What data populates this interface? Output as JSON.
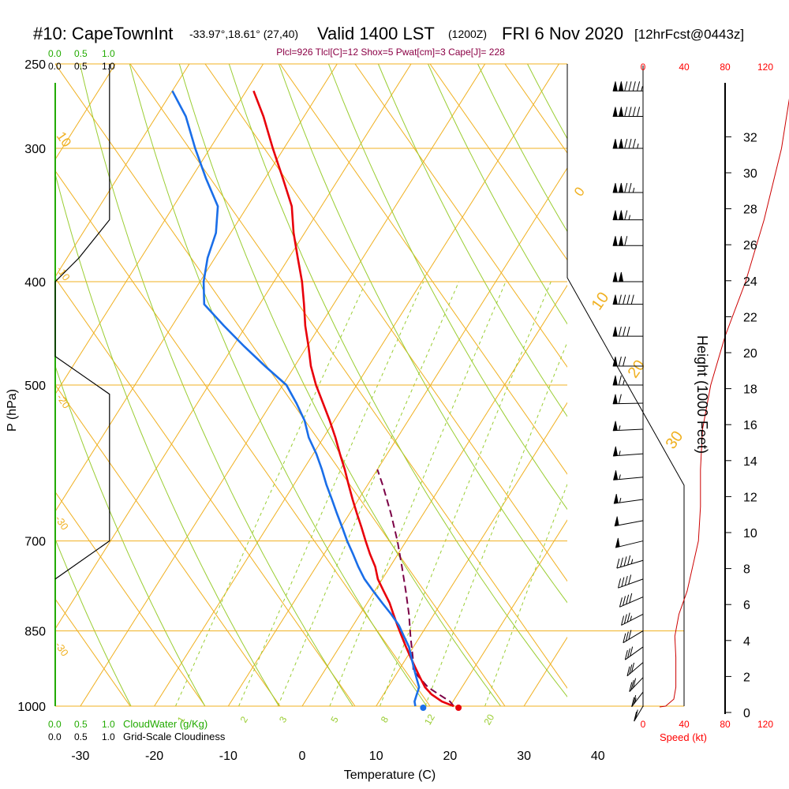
{
  "header": {
    "station": "#10: CapeTownInt",
    "coords": "-33.97°,18.61° (27,40)",
    "valid": "Valid 1400 LST",
    "utc": "(1200Z)",
    "date": "FRI 6 Nov 2020",
    "forecast": "[12hrFcst@0443z]",
    "params": "Plcl=926 Tlcl[C]=12 Shox=5 Pwat[cm]=3 Cape[J]= 228"
  },
  "legends": {
    "cloudwater_label": "CloudWater (g/Kg)",
    "cloudiness_label": "Grid-Scale Cloudiness",
    "cloudwater_ticks": [
      "0.0",
      "0.5",
      "1.0"
    ],
    "cloudiness_ticks": [
      "0.0",
      "0.5",
      "1.0"
    ],
    "speed_label": "Speed (kt)",
    "speed_ticks": [
      "0",
      "40",
      "80",
      "120"
    ]
  },
  "colors": {
    "isotherm": "#f0b020",
    "dry_adiabat": "#9acd32",
    "temperature": "#e8000b",
    "dewpoint": "#1a6ee8",
    "parcel": "#7b0046",
    "cloud_green": "#22aa00",
    "speed_red": "#ff0000"
  },
  "chart_data": {
    "type": "line",
    "xlabel": "Temperature (C)",
    "ylabel": "P (hPa)",
    "y2label": "Height (1000 Feet)",
    "xlim": [
      -35,
      45
    ],
    "ylim": [
      1000,
      250
    ],
    "y_scale": "log",
    "x_ticks": [
      -30,
      -20,
      -10,
      0,
      10,
      20,
      30,
      40
    ],
    "pressure_ticks": [
      250,
      300,
      400,
      500,
      700,
      850,
      1000
    ],
    "height_ticks": [
      0,
      2,
      4,
      6,
      8,
      10,
      12,
      14,
      16,
      18,
      20,
      22,
      24,
      26,
      28,
      30,
      32
    ],
    "isotherm_labels": [
      "10",
      "0",
      "-10",
      "-20",
      "-30",
      "0",
      "10",
      "20",
      "30"
    ],
    "mixing_ratio_labels": [
      "1",
      "2",
      "3",
      "5",
      "8",
      "12",
      "20"
    ],
    "series": [
      {
        "key": "temperature",
        "p": [
          1000,
          990,
          975,
          960,
          940,
          920,
          900,
          880,
          860,
          840,
          820,
          800,
          780,
          760,
          740,
          720,
          700,
          680,
          660,
          640,
          620,
          600,
          580,
          560,
          540,
          520,
          500,
          480,
          460,
          440,
          420,
          400,
          380,
          360,
          340,
          320,
          300,
          280,
          265
        ],
        "t": [
          20.5,
          18.5,
          16.5,
          15,
          13.5,
          12,
          10.5,
          9,
          7.5,
          6,
          4.5,
          3,
          1.2,
          -0.6,
          -2,
          -3.8,
          -5.5,
          -7.2,
          -9,
          -10.8,
          -12.6,
          -14.4,
          -16.4,
          -18.4,
          -20.6,
          -23,
          -25.5,
          -27.8,
          -29.8,
          -32,
          -34,
          -36.2,
          -38.8,
          -41.5,
          -44,
          -47.6,
          -51.5,
          -55.5,
          -59
        ]
      },
      {
        "key": "dewpoint",
        "p": [
          1000,
          990,
          975,
          960,
          940,
          920,
          900,
          880,
          860,
          840,
          820,
          800,
          780,
          760,
          740,
          720,
          700,
          680,
          660,
          640,
          620,
          600,
          580,
          560,
          540,
          520,
          500,
          480,
          460,
          440,
          420,
          400,
          380,
          360,
          340,
          320,
          300,
          280,
          265
        ],
        "t": [
          15.3,
          14.8,
          14.5,
          14.2,
          13,
          11.8,
          10.6,
          9.4,
          7.8,
          6.2,
          4.2,
          2,
          -0.2,
          -2.4,
          -4.3,
          -6.1,
          -8,
          -9.8,
          -11.7,
          -13.6,
          -15.6,
          -17.5,
          -19.6,
          -22,
          -24,
          -26.6,
          -29.5,
          -34,
          -38.5,
          -43,
          -47.5,
          -49.5,
          -51,
          -52,
          -54,
          -58,
          -62,
          -66,
          -70
        ]
      },
      {
        "key": "parcel",
        "p": [
          1000,
          990,
          975,
          960,
          940,
          926,
          900,
          860,
          820,
          780,
          740,
          700,
          660,
          620,
          600
        ],
        "t": [
          20.5,
          19.6,
          17.5,
          15.4,
          13.4,
          12,
          10.8,
          8.7,
          6.6,
          4.2,
          1.6,
          -1.2,
          -4.4,
          -8,
          -10
        ]
      }
    ],
    "cloudiness": {
      "p": [
        250,
        350,
        380,
        400,
        470,
        510,
        700,
        760
      ],
      "value": [
        0.8,
        0.8,
        0.35,
        0.0,
        0.0,
        0.8,
        0.8,
        0.0
      ]
    },
    "wind_speed": {
      "p": [
        1000,
        985,
        960,
        900,
        860,
        820,
        780,
        700,
        650,
        600,
        550,
        500,
        450,
        400,
        350,
        300,
        250
      ],
      "kt": [
        22,
        30,
        32,
        32,
        31,
        35,
        43,
        54,
        56,
        56,
        58,
        66,
        80,
        100,
        118,
        135,
        148
      ]
    },
    "wind_barbs": {
      "p": [
        1000,
        970,
        940,
        910,
        880,
        850,
        820,
        790,
        760,
        730,
        700,
        670,
        640,
        610,
        580,
        550,
        520,
        500,
        480,
        450,
        420,
        400,
        370,
        350,
        330,
        300,
        280,
        265
      ],
      "dir": [
        195,
        200,
        205,
        210,
        215,
        220,
        225,
        230,
        235,
        240,
        245,
        250,
        255,
        260,
        262,
        265,
        268,
        270,
        270,
        270,
        270,
        270,
        270,
        270,
        270,
        270,
        270,
        270
      ],
      "kt": [
        22,
        28,
        30,
        32,
        32,
        31,
        35,
        40,
        44,
        48,
        52,
        54,
        55,
        56,
        57,
        58,
        62,
        66,
        72,
        80,
        90,
        100,
        110,
        118,
        125,
        135,
        142,
        148
      ]
    }
  }
}
